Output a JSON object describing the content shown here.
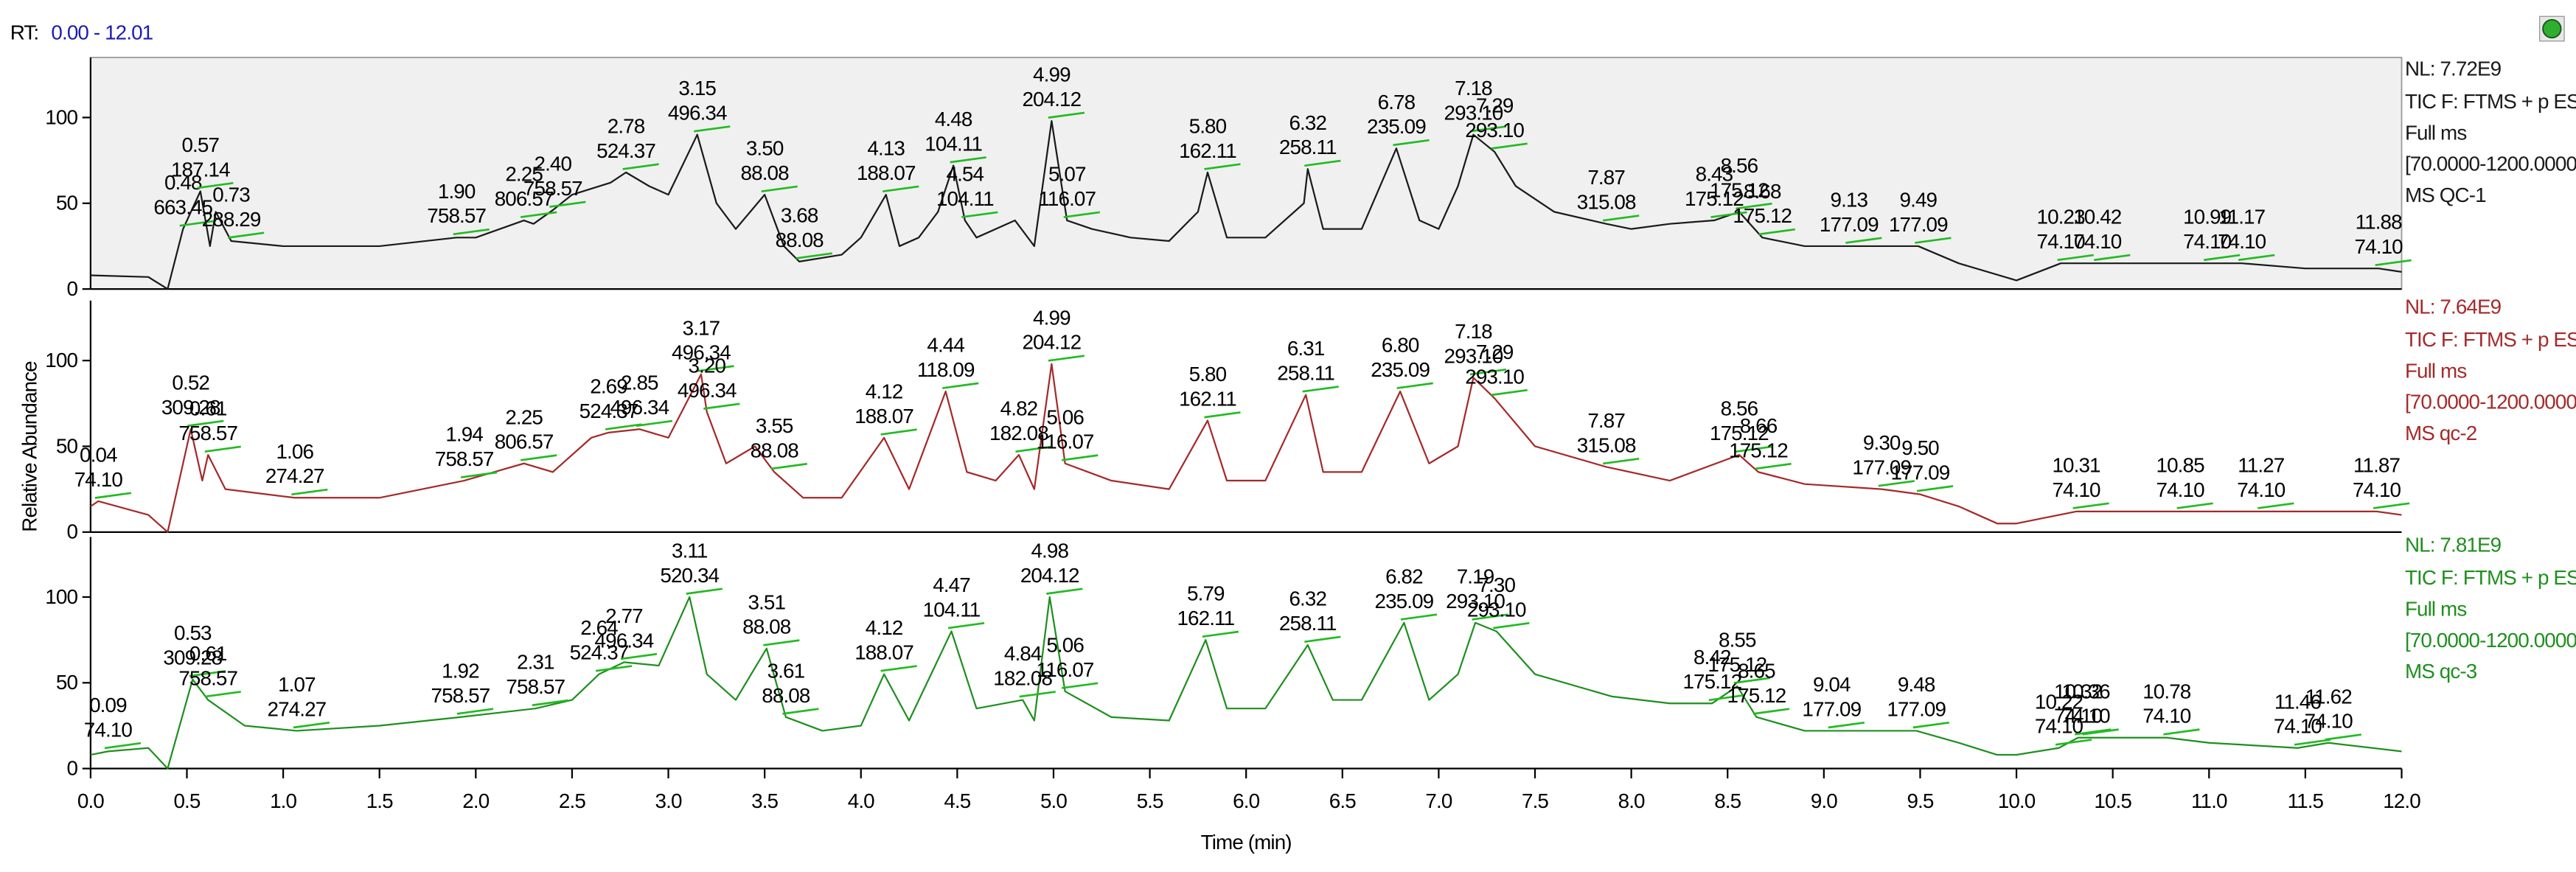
{
  "rt_prefix": "RT:",
  "rt_range": "0.00 - 12.01",
  "y_label": "Relative Abundance",
  "chart_data": [
    {
      "type": "line",
      "color": "#1a1a1a",
      "nl": "NL: 7.72E9",
      "info": [
        "TIC F: FTMS + p ESI",
        "Full ms",
        "[70.0000-1200.0000]",
        "MS QC-1"
      ],
      "xlim": [
        0,
        12
      ],
      "ylim": [
        0,
        135
      ],
      "yticks": [
        0,
        50,
        100
      ],
      "background": "#f0f0f0",
      "x": [
        0,
        0.3,
        0.4,
        0.48,
        0.57,
        0.62,
        0.65,
        0.73,
        1.0,
        1.5,
        1.9,
        2.0,
        2.25,
        2.3,
        2.4,
        2.5,
        2.7,
        2.78,
        2.9,
        3.0,
        3.15,
        3.25,
        3.35,
        3.5,
        3.6,
        3.68,
        3.9,
        4.0,
        4.13,
        4.2,
        4.3,
        4.4,
        4.48,
        4.54,
        4.6,
        4.8,
        4.9,
        4.99,
        5.07,
        5.2,
        5.4,
        5.6,
        5.75,
        5.8,
        5.9,
        6.1,
        6.3,
        6.32,
        6.4,
        6.6,
        6.78,
        6.9,
        7.0,
        7.1,
        7.18,
        7.29,
        7.4,
        7.6,
        7.87,
        8.0,
        8.2,
        8.43,
        8.56,
        8.68,
        8.9,
        9.13,
        9.3,
        9.49,
        9.7,
        10.0,
        10.23,
        10.42,
        10.99,
        11.17,
        11.5,
        11.88,
        12.0
      ],
      "values": [
        8,
        7,
        0,
        35,
        57,
        25,
        45,
        28,
        25,
        25,
        30,
        30,
        40,
        38,
        46,
        55,
        62,
        68,
        60,
        55,
        90,
        50,
        35,
        55,
        25,
        16,
        20,
        30,
        55,
        25,
        30,
        45,
        72,
        40,
        30,
        40,
        25,
        98,
        40,
        35,
        30,
        28,
        45,
        68,
        30,
        30,
        50,
        70,
        35,
        35,
        82,
        40,
        35,
        60,
        90,
        80,
        60,
        45,
        38,
        35,
        38,
        40,
        45,
        30,
        25,
        25,
        25,
        25,
        15,
        5,
        15,
        15,
        15,
        15,
        12,
        12,
        10
      ],
      "annotations": [
        {
          "x": 0.48,
          "y": 35,
          "label": "0.48",
          "mz": "663.45"
        },
        {
          "x": 0.57,
          "y": 57,
          "label": "0.57",
          "mz": "187.14"
        },
        {
          "x": 0.73,
          "y": 28,
          "label": "0.73",
          "mz": "288.29"
        },
        {
          "x": 1.9,
          "y": 30,
          "label": "1.90",
          "mz": "758.57"
        },
        {
          "x": 2.25,
          "y": 40,
          "label": "2.25",
          "mz": "806.57"
        },
        {
          "x": 2.4,
          "y": 46,
          "label": "2.40",
          "mz": "758.57"
        },
        {
          "x": 2.78,
          "y": 68,
          "label": "2.78",
          "mz": "524.37"
        },
        {
          "x": 3.15,
          "y": 90,
          "label": "3.15",
          "mz": "496.34"
        },
        {
          "x": 3.5,
          "y": 55,
          "label": "3.50",
          "mz": "88.08"
        },
        {
          "x": 3.68,
          "y": 16,
          "label": "3.68",
          "mz": "88.08"
        },
        {
          "x": 4.13,
          "y": 55,
          "label": "4.13",
          "mz": "188.07"
        },
        {
          "x": 4.48,
          "y": 72,
          "label": "4.48",
          "mz": "104.11"
        },
        {
          "x": 4.54,
          "y": 40,
          "label": "4.54",
          "mz": "104.11"
        },
        {
          "x": 4.99,
          "y": 98,
          "label": "4.99",
          "mz": "204.12"
        },
        {
          "x": 5.07,
          "y": 40,
          "label": "5.07",
          "mz": "116.07"
        },
        {
          "x": 5.8,
          "y": 68,
          "label": "5.80",
          "mz": "162.11"
        },
        {
          "x": 6.32,
          "y": 70,
          "label": "6.32",
          "mz": "258.11"
        },
        {
          "x": 6.78,
          "y": 82,
          "label": "6.78",
          "mz": "235.09"
        },
        {
          "x": 7.18,
          "y": 90,
          "label": "7.18",
          "mz": "293.10"
        },
        {
          "x": 7.29,
          "y": 80,
          "label": "7.29",
          "mz": "293.10"
        },
        {
          "x": 7.87,
          "y": 38,
          "label": "7.87",
          "mz": "315.08"
        },
        {
          "x": 8.43,
          "y": 40,
          "label": "8.43",
          "mz": "175.12"
        },
        {
          "x": 8.56,
          "y": 45,
          "label": "8.56",
          "mz": "175.12"
        },
        {
          "x": 8.68,
          "y": 30,
          "label": "8.68",
          "mz": "175.12"
        },
        {
          "x": 9.13,
          "y": 25,
          "label": "9.13",
          "mz": "177.09"
        },
        {
          "x": 9.49,
          "y": 25,
          "label": "9.49",
          "mz": "177.09"
        },
        {
          "x": 10.23,
          "y": 15,
          "label": "10.23",
          "mz": "74.10"
        },
        {
          "x": 10.42,
          "y": 15,
          "label": "10.42",
          "mz": "74.10"
        },
        {
          "x": 10.99,
          "y": 15,
          "label": "10.99",
          "mz": "74.10"
        },
        {
          "x": 11.17,
          "y": 15,
          "label": "11.17",
          "mz": "74.10"
        },
        {
          "x": 11.88,
          "y": 12,
          "label": "11.88",
          "mz": "74.10"
        }
      ]
    },
    {
      "type": "line",
      "color": "#a52a2a",
      "nl": "NL: 7.64E9",
      "info": [
        "TIC F: FTMS + p ESI",
        "Full ms",
        "[70.0000-1200.0000]",
        "MS qc-2"
      ],
      "xlim": [
        0,
        12
      ],
      "ylim": [
        0,
        135
      ],
      "yticks": [
        0,
        50,
        100
      ],
      "x": [
        0,
        0.04,
        0.3,
        0.4,
        0.52,
        0.58,
        0.61,
        0.7,
        1.06,
        1.5,
        1.94,
        2.25,
        2.4,
        2.6,
        2.69,
        2.85,
        3.0,
        3.17,
        3.2,
        3.3,
        3.45,
        3.55,
        3.7,
        3.9,
        4.12,
        4.25,
        4.44,
        4.55,
        4.7,
        4.82,
        4.9,
        4.99,
        5.06,
        5.3,
        5.6,
        5.8,
        5.9,
        6.1,
        6.31,
        6.4,
        6.6,
        6.8,
        6.95,
        7.1,
        7.18,
        7.29,
        7.5,
        7.87,
        8.2,
        8.56,
        8.66,
        8.9,
        9.3,
        9.5,
        9.7,
        9.9,
        10.0,
        10.31,
        10.85,
        11.27,
        11.87,
        12.0
      ],
      "values": [
        15,
        18,
        10,
        0,
        60,
        30,
        45,
        25,
        20,
        20,
        30,
        40,
        35,
        55,
        58,
        60,
        55,
        92,
        70,
        40,
        50,
        35,
        20,
        20,
        55,
        25,
        82,
        35,
        30,
        45,
        25,
        98,
        40,
        30,
        25,
        65,
        30,
        30,
        80,
        35,
        35,
        82,
        40,
        50,
        90,
        78,
        50,
        38,
        30,
        45,
        35,
        28,
        25,
        22,
        15,
        5,
        5,
        12,
        12,
        12,
        12,
        10
      ],
      "annotations": [
        {
          "x": 0.04,
          "y": 18,
          "label": "0.04",
          "mz": "74.10"
        },
        {
          "x": 0.52,
          "y": 60,
          "label": "0.52",
          "mz": "309.28"
        },
        {
          "x": 0.61,
          "y": 45,
          "label": "0.61",
          "mz": "758.57"
        },
        {
          "x": 1.06,
          "y": 20,
          "label": "1.06",
          "mz": "274.27"
        },
        {
          "x": 1.94,
          "y": 30,
          "label": "1.94",
          "mz": "758.57"
        },
        {
          "x": 2.25,
          "y": 40,
          "label": "2.25",
          "mz": "806.57"
        },
        {
          "x": 2.69,
          "y": 58,
          "label": "2.69",
          "mz": "524.37"
        },
        {
          "x": 2.85,
          "y": 60,
          "label": "2.85",
          "mz": "496.34"
        },
        {
          "x": 3.17,
          "y": 92,
          "label": "3.17",
          "mz": "496.34"
        },
        {
          "x": 3.2,
          "y": 70,
          "label": "3.20",
          "mz": "496.34"
        },
        {
          "x": 3.55,
          "y": 35,
          "label": "3.55",
          "mz": "88.08"
        },
        {
          "x": 4.12,
          "y": 55,
          "label": "4.12",
          "mz": "188.07"
        },
        {
          "x": 4.44,
          "y": 82,
          "label": "4.44",
          "mz": "118.09"
        },
        {
          "x": 4.82,
          "y": 45,
          "label": "4.82",
          "mz": "182.08"
        },
        {
          "x": 4.99,
          "y": 98,
          "label": "4.99",
          "mz": "204.12"
        },
        {
          "x": 5.06,
          "y": 40,
          "label": "5.06",
          "mz": "116.07"
        },
        {
          "x": 5.8,
          "y": 65,
          "label": "5.80",
          "mz": "162.11"
        },
        {
          "x": 6.31,
          "y": 80,
          "label": "6.31",
          "mz": "258.11"
        },
        {
          "x": 6.8,
          "y": 82,
          "label": "6.80",
          "mz": "235.09"
        },
        {
          "x": 7.18,
          "y": 90,
          "label": "7.18",
          "mz": "293.10"
        },
        {
          "x": 7.29,
          "y": 78,
          "label": "7.29",
          "mz": "293.10"
        },
        {
          "x": 7.87,
          "y": 38,
          "label": "7.87",
          "mz": "315.08"
        },
        {
          "x": 8.56,
          "y": 45,
          "label": "8.56",
          "mz": "175.12"
        },
        {
          "x": 8.66,
          "y": 35,
          "label": "8.66",
          "mz": "175.12"
        },
        {
          "x": 9.3,
          "y": 25,
          "label": "9.30",
          "mz": "177.09"
        },
        {
          "x": 9.5,
          "y": 22,
          "label": "9.50",
          "mz": "177.09"
        },
        {
          "x": 10.31,
          "y": 12,
          "label": "10.31",
          "mz": "74.10"
        },
        {
          "x": 10.85,
          "y": 12,
          "label": "10.85",
          "mz": "74.10"
        },
        {
          "x": 11.27,
          "y": 12,
          "label": "11.27",
          "mz": "74.10"
        },
        {
          "x": 11.87,
          "y": 12,
          "label": "11.87",
          "mz": "74.10"
        }
      ]
    },
    {
      "type": "line",
      "color": "#1f8f1f",
      "nl": "NL: 7.81E9",
      "info": [
        "TIC F: FTMS + p ESI",
        "Full ms",
        "[70.0000-1200.0000]",
        "MS qc-3"
      ],
      "xlim": [
        0,
        12
      ],
      "ylim": [
        0,
        135
      ],
      "yticks": [
        0,
        50,
        100
      ],
      "x_label": "Time (min)",
      "xticks": [
        {
          "value": 0,
          "label": "0.0"
        },
        0.5,
        {
          "value": 1,
          "label": "1.0"
        },
        1.5,
        {
          "value": 2,
          "label": "2.0"
        },
        2.5,
        {
          "value": 3,
          "label": "3.0"
        },
        3.5,
        {
          "value": 4,
          "label": "4.0"
        },
        4.5,
        {
          "value": 5,
          "label": "5.0"
        },
        5.5,
        {
          "value": 6,
          "label": "6.0"
        },
        6.5,
        {
          "value": 7,
          "label": "7.0"
        },
        7.5,
        {
          "value": 8,
          "label": "8.0"
        },
        8.5,
        {
          "value": 9,
          "label": "9.0"
        },
        9.5,
        {
          "value": 10,
          "label": "10.0"
        },
        10.5,
        {
          "value": 11,
          "label": "11.0"
        },
        11.5,
        {
          "value": 12,
          "label": "12.0"
        }
      ],
      "x": [
        0,
        0.09,
        0.3,
        0.4,
        0.53,
        0.61,
        0.8,
        1.07,
        1.5,
        1.92,
        2.31,
        2.5,
        2.64,
        2.77,
        2.95,
        3.11,
        3.2,
        3.35,
        3.51,
        3.61,
        3.8,
        4.0,
        4.12,
        4.25,
        4.47,
        4.6,
        4.84,
        4.9,
        4.98,
        5.06,
        5.3,
        5.6,
        5.79,
        5.9,
        6.1,
        6.32,
        6.45,
        6.6,
        6.82,
        6.95,
        7.1,
        7.19,
        7.3,
        7.5,
        7.9,
        8.2,
        8.42,
        8.55,
        8.65,
        8.9,
        9.04,
        9.48,
        9.7,
        9.9,
        10.0,
        10.22,
        10.32,
        10.36,
        10.78,
        11.0,
        11.46,
        11.62,
        12.0
      ],
      "values": [
        8,
        10,
        12,
        0,
        52,
        40,
        25,
        22,
        25,
        30,
        35,
        40,
        55,
        62,
        60,
        100,
        55,
        40,
        70,
        30,
        22,
        25,
        55,
        28,
        80,
        35,
        40,
        28,
        100,
        45,
        30,
        28,
        75,
        35,
        35,
        72,
        40,
        40,
        85,
        40,
        55,
        85,
        80,
        55,
        42,
        38,
        38,
        48,
        30,
        22,
        22,
        22,
        15,
        8,
        8,
        12,
        18,
        18,
        18,
        15,
        12,
        15,
        10
      ],
      "annotations": [
        {
          "x": 0.09,
          "y": 10,
          "label": "0.09",
          "mz": "74.10"
        },
        {
          "x": 0.53,
          "y": 52,
          "label": "0.53",
          "mz": "309.28"
        },
        {
          "x": 0.61,
          "y": 40,
          "label": "0.61",
          "mz": "758.57"
        },
        {
          "x": 1.07,
          "y": 22,
          "label": "1.07",
          "mz": "274.27"
        },
        {
          "x": 1.92,
          "y": 30,
          "label": "1.92",
          "mz": "758.57"
        },
        {
          "x": 2.31,
          "y": 35,
          "label": "2.31",
          "mz": "758.57"
        },
        {
          "x": 2.64,
          "y": 55,
          "label": "2.64",
          "mz": "524.37"
        },
        {
          "x": 2.77,
          "y": 62,
          "label": "2.77",
          "mz": "496.34"
        },
        {
          "x": 3.11,
          "y": 100,
          "label": "3.11",
          "mz": "520.34"
        },
        {
          "x": 3.51,
          "y": 70,
          "label": "3.51",
          "mz": "88.08"
        },
        {
          "x": 3.61,
          "y": 30,
          "label": "3.61",
          "mz": "88.08"
        },
        {
          "x": 4.12,
          "y": 55,
          "label": "4.12",
          "mz": "188.07"
        },
        {
          "x": 4.47,
          "y": 80,
          "label": "4.47",
          "mz": "104.11"
        },
        {
          "x": 4.84,
          "y": 40,
          "label": "4.84",
          "mz": "182.08"
        },
        {
          "x": 4.98,
          "y": 100,
          "label": "4.98",
          "mz": "204.12"
        },
        {
          "x": 5.06,
          "y": 45,
          "label": "5.06",
          "mz": "116.07"
        },
        {
          "x": 5.79,
          "y": 75,
          "label": "5.79",
          "mz": "162.11"
        },
        {
          "x": 6.32,
          "y": 72,
          "label": "6.32",
          "mz": "258.11"
        },
        {
          "x": 6.82,
          "y": 85,
          "label": "6.82",
          "mz": "235.09"
        },
        {
          "x": 7.19,
          "y": 85,
          "label": "7.19",
          "mz": "293.10"
        },
        {
          "x": 7.3,
          "y": 80,
          "label": "7.30",
          "mz": "293.10"
        },
        {
          "x": 8.42,
          "y": 38,
          "label": "8.42",
          "mz": "175.12"
        },
        {
          "x": 8.55,
          "y": 48,
          "label": "8.55",
          "mz": "175.12"
        },
        {
          "x": 8.65,
          "y": 30,
          "label": "8.65",
          "mz": "175.12"
        },
        {
          "x": 9.04,
          "y": 22,
          "label": "9.04",
          "mz": "177.09"
        },
        {
          "x": 9.48,
          "y": 22,
          "label": "9.48",
          "mz": "177.09"
        },
        {
          "x": 10.22,
          "y": 12,
          "label": "10.22",
          "mz": "74.10"
        },
        {
          "x": 10.32,
          "y": 18,
          "label": "10.32",
          "mz": "74.10"
        },
        {
          "x": 10.36,
          "y": 18,
          "label": "10.36",
          "mz": "74.10"
        },
        {
          "x": 10.78,
          "y": 18,
          "label": "10.78",
          "mz": "74.10"
        },
        {
          "x": 11.46,
          "y": 12,
          "label": "11.46",
          "mz": "74.10"
        },
        {
          "x": 11.62,
          "y": 15,
          "label": "11.62",
          "mz": "74.10"
        }
      ]
    }
  ]
}
